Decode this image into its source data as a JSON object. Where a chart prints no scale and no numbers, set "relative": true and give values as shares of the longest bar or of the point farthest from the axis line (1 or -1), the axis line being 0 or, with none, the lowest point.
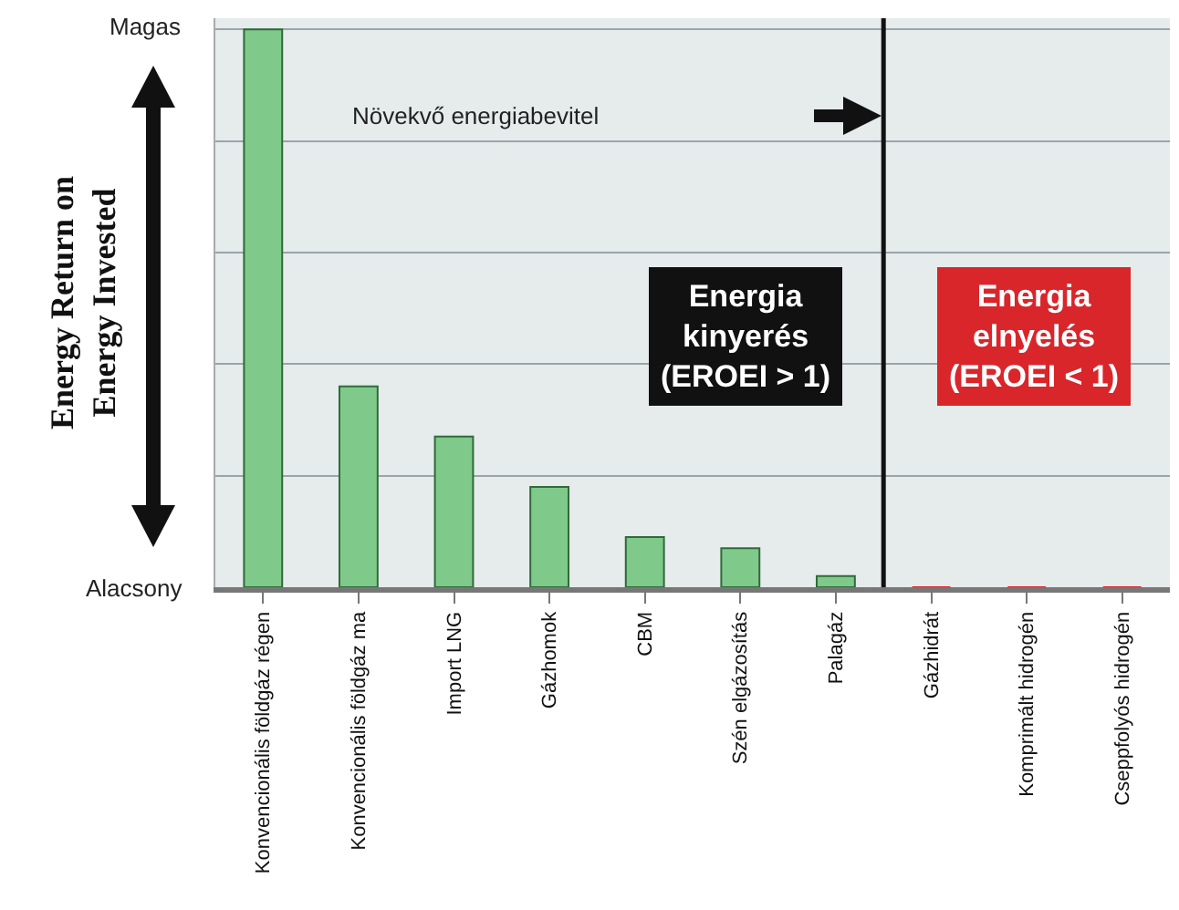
{
  "chart_data": {
    "type": "bar",
    "relative": true,
    "ylabel": "Energy Return on\nEnergy Invested",
    "categories": [
      "Konvencionális földgáz régen",
      "Konvencionális földgáz ma",
      "Import LNG",
      "Gázhomok",
      "CBM",
      "Szén elgázosítás",
      "Palagáz",
      "Gázhidrát",
      "Komprimált hidrogén",
      "Cseppfolyós hidrogén"
    ],
    "values": [
      1,
      0.36,
      0.27,
      0.18,
      0.09,
      0.07,
      0.02,
      0,
      0,
      0
    ],
    "colors": [
      "#7fc98a",
      "#7fc98a",
      "#7fc98a",
      "#7fc98a",
      "#7fc98a",
      "#7fc98a",
      "#7fc98a",
      "#d8262b",
      "#d8262b",
      "#d8262b"
    ],
    "annotations": [
      "Magas",
      "Alacsony",
      "Növekvő energiabevitel",
      "Energia\nkinyerés\n(EROEI > 1)",
      "Energia\nelnyelés\n(EROEI < 1)"
    ],
    "grid": "y",
    "legend": false
  }
}
